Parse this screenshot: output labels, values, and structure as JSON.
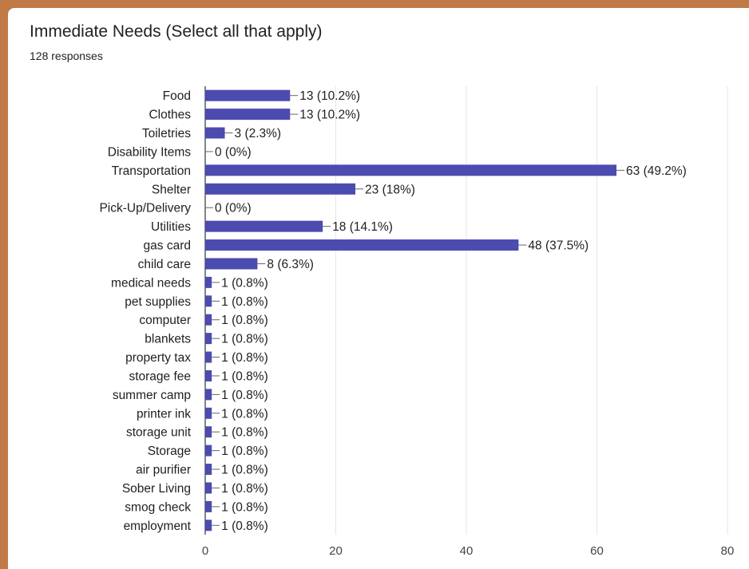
{
  "header": {
    "title": "Immediate Needs (Select all that apply)",
    "responses": "128 responses"
  },
  "colors": {
    "bar": "#4b4bb0",
    "background": "#c07a45",
    "grid": "#e6e6e6"
  },
  "chart_data": {
    "type": "bar",
    "orientation": "horizontal",
    "title": "Immediate Needs (Select all that apply)",
    "xlim": [
      0,
      80
    ],
    "xticks": [
      0,
      20,
      40,
      60,
      80
    ],
    "grid": true,
    "categories": [
      "Food",
      "Clothes",
      "Toiletries",
      "Disability Items",
      "Transportation",
      "Shelter",
      "Pick-Up/Delivery",
      "Utilities",
      "gas card",
      "child care",
      "medical needs",
      "pet supplies",
      "computer",
      "blankets",
      "property tax",
      "storage fee",
      "summer camp",
      "printer ink",
      "storage unit",
      "Storage",
      "air purifier",
      "Sober Living",
      "smog check",
      "employment"
    ],
    "values": [
      13,
      13,
      3,
      0,
      63,
      23,
      0,
      18,
      48,
      8,
      1,
      1,
      1,
      1,
      1,
      1,
      1,
      1,
      1,
      1,
      1,
      1,
      1,
      1
    ],
    "data_labels": [
      "13 (10.2%)",
      "13 (10.2%)",
      "3 (2.3%)",
      "0 (0%)",
      "63 (49.2%)",
      "23 (18%)",
      "0 (0%)",
      "18 (14.1%)",
      "48 (37.5%)",
      "8 (6.3%)",
      "1 (0.8%)",
      "1 (0.8%)",
      "1 (0.8%)",
      "1 (0.8%)",
      "1 (0.8%)",
      "1 (0.8%)",
      "1 (0.8%)",
      "1 (0.8%)",
      "1 (0.8%)",
      "1 (0.8%)",
      "1 (0.8%)",
      "1 (0.8%)",
      "1 (0.8%)",
      "1 (0.8%)"
    ]
  }
}
